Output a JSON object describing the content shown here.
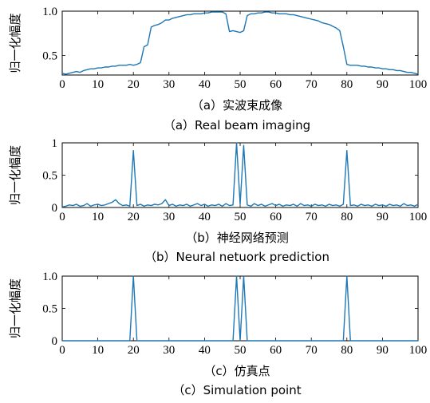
{
  "chart_data": [
    {
      "type": "line",
      "ylabel": "归一化幅度",
      "xlim": [
        0,
        100
      ],
      "ylim": [
        0.28,
        1.0
      ],
      "xticks": [
        "0",
        "10",
        "20",
        "30",
        "40",
        "50",
        "60",
        "70",
        "80",
        "90",
        "100"
      ],
      "yticks": [
        {
          "v": 0.5,
          "label": "0.5"
        },
        {
          "v": 1.0,
          "label": "1.0"
        }
      ],
      "caption_cn": "（a）实波束成像",
      "caption_en": "（a）Real beam imaging",
      "color": "#1f77b4",
      "x": [
        0,
        1,
        2,
        3,
        4,
        5,
        6,
        7,
        8,
        9,
        10,
        11,
        12,
        13,
        14,
        15,
        16,
        17,
        18,
        19,
        20,
        21,
        22,
        23,
        24,
        25,
        26,
        27,
        28,
        29,
        30,
        31,
        32,
        33,
        34,
        35,
        36,
        37,
        38,
        39,
        40,
        41,
        42,
        43,
        44,
        45,
        46,
        47,
        48,
        49,
        50,
        51,
        52,
        53,
        54,
        55,
        56,
        57,
        58,
        59,
        60,
        61,
        62,
        63,
        64,
        65,
        66,
        67,
        68,
        69,
        70,
        71,
        72,
        73,
        74,
        75,
        76,
        77,
        78,
        79,
        80,
        81,
        82,
        83,
        84,
        85,
        86,
        87,
        88,
        89,
        90,
        91,
        92,
        93,
        94,
        95,
        96,
        97,
        98,
        99,
        100
      ],
      "y": [
        0.3,
        0.29,
        0.3,
        0.31,
        0.32,
        0.31,
        0.33,
        0.34,
        0.35,
        0.35,
        0.36,
        0.36,
        0.37,
        0.37,
        0.38,
        0.38,
        0.39,
        0.39,
        0.39,
        0.4,
        0.39,
        0.4,
        0.42,
        0.6,
        0.62,
        0.82,
        0.84,
        0.85,
        0.87,
        0.9,
        0.9,
        0.92,
        0.93,
        0.94,
        0.95,
        0.96,
        0.96,
        0.97,
        0.97,
        0.97,
        0.98,
        0.98,
        0.99,
        0.99,
        0.99,
        0.99,
        0.97,
        0.77,
        0.78,
        0.77,
        0.76,
        0.78,
        0.95,
        0.97,
        0.97,
        0.98,
        0.98,
        0.99,
        0.99,
        0.98,
        0.98,
        0.97,
        0.97,
        0.97,
        0.96,
        0.96,
        0.95,
        0.94,
        0.93,
        0.92,
        0.91,
        0.9,
        0.89,
        0.87,
        0.86,
        0.85,
        0.83,
        0.81,
        0.78,
        0.6,
        0.4,
        0.39,
        0.39,
        0.39,
        0.38,
        0.38,
        0.37,
        0.37,
        0.36,
        0.36,
        0.35,
        0.35,
        0.34,
        0.34,
        0.33,
        0.33,
        0.32,
        0.31,
        0.31,
        0.3,
        0.29
      ]
    },
    {
      "type": "line",
      "ylabel": "归一化幅度",
      "xlim": [
        0,
        100
      ],
      "ylim": [
        0,
        1.0
      ],
      "xticks": [
        "0",
        "10",
        "20",
        "30",
        "40",
        "50",
        "60",
        "70",
        "80",
        "90",
        "100"
      ],
      "yticks": [
        {
          "v": 0,
          "label": "0"
        },
        {
          "v": 0.5,
          "label": "0.5"
        },
        {
          "v": 1.0,
          "label": "1"
        }
      ],
      "caption_cn": "（b）神经网络预测",
      "caption_en": "（b）Neural netuork prediction",
      "color": "#1f77b4",
      "x": [
        0,
        1,
        2,
        3,
        4,
        5,
        6,
        7,
        8,
        9,
        10,
        11,
        12,
        13,
        14,
        15,
        16,
        17,
        18,
        19,
        20,
        21,
        22,
        23,
        24,
        25,
        26,
        27,
        28,
        29,
        30,
        31,
        32,
        33,
        34,
        35,
        36,
        37,
        38,
        39,
        40,
        41,
        42,
        43,
        44,
        45,
        46,
        47,
        48,
        49,
        50,
        51,
        52,
        53,
        54,
        55,
        56,
        57,
        58,
        59,
        60,
        61,
        62,
        63,
        64,
        65,
        66,
        67,
        68,
        69,
        70,
        71,
        72,
        73,
        74,
        75,
        76,
        77,
        78,
        79,
        80,
        81,
        82,
        83,
        84,
        85,
        86,
        87,
        88,
        89,
        90,
        91,
        92,
        93,
        94,
        95,
        96,
        97,
        98,
        99,
        100
      ],
      "y": [
        0.01,
        0.02,
        0.04,
        0.03,
        0.05,
        0.02,
        0.03,
        0.06,
        0.02,
        0.04,
        0.05,
        0.03,
        0.04,
        0.06,
        0.08,
        0.12,
        0.06,
        0.03,
        0.04,
        0.02,
        0.88,
        0.03,
        0.05,
        0.02,
        0.04,
        0.03,
        0.05,
        0.04,
        0.06,
        0.12,
        0.03,
        0.05,
        0.02,
        0.04,
        0.03,
        0.05,
        0.02,
        0.04,
        0.06,
        0.03,
        0.05,
        0.02,
        0.04,
        0.03,
        0.05,
        0.02,
        0.06,
        0.03,
        0.04,
        1.0,
        0.05,
        0.96,
        0.04,
        0.02,
        0.06,
        0.03,
        0.05,
        0.02,
        0.04,
        0.06,
        0.03,
        0.05,
        0.02,
        0.04,
        0.03,
        0.05,
        0.02,
        0.06,
        0.03,
        0.04,
        0.02,
        0.05,
        0.03,
        0.04,
        0.02,
        0.05,
        0.03,
        0.04,
        0.02,
        0.05,
        0.88,
        0.03,
        0.04,
        0.02,
        0.05,
        0.03,
        0.04,
        0.02,
        0.05,
        0.03,
        0.04,
        0.02,
        0.05,
        0.03,
        0.04,
        0.02,
        0.06,
        0.03,
        0.04,
        0.02,
        0.05
      ]
    },
    {
      "type": "line",
      "ylabel": "归一化幅度",
      "xlim": [
        0,
        100
      ],
      "ylim": [
        0,
        1.0
      ],
      "xticks": [
        "0",
        "10",
        "20",
        "30",
        "40",
        "50",
        "60",
        "70",
        "80",
        "90",
        "100"
      ],
      "yticks": [
        {
          "v": 0,
          "label": "0"
        },
        {
          "v": 0.5,
          "label": "0.5"
        },
        {
          "v": 1.0,
          "label": "1.0"
        }
      ],
      "caption_cn": "（c）仿真点",
      "caption_en": "（c）Simulation point",
      "color": "#1f77b4",
      "x": [
        0,
        19,
        20,
        21,
        48,
        49,
        50,
        51,
        52,
        79,
        80,
        81,
        100
      ],
      "y": [
        0,
        0,
        1.0,
        0,
        0,
        1.0,
        0,
        1.0,
        0,
        0,
        1.0,
        0,
        0
      ]
    }
  ]
}
